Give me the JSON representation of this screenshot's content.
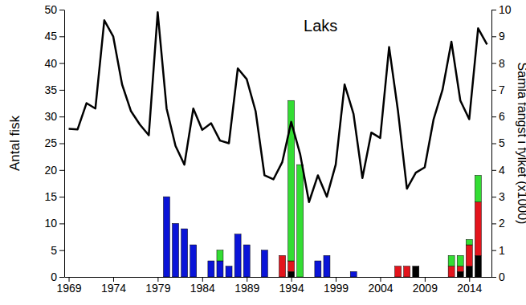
{
  "chart_data": {
    "type": "bar",
    "title": "Laks",
    "y_label": "Antal fisk",
    "y2_label": "Samla fangst i fylket (x1000)",
    "stacked": true,
    "x": [
      1969,
      1970,
      1971,
      1972,
      1973,
      1974,
      1975,
      1976,
      1977,
      1978,
      1979,
      1980,
      1981,
      1982,
      1983,
      1984,
      1985,
      1986,
      1987,
      1988,
      1989,
      1990,
      1991,
      1992,
      1993,
      1994,
      1995,
      1996,
      1997,
      1998,
      1999,
      2000,
      2001,
      2002,
      2003,
      2004,
      2005,
      2006,
      2007,
      2008,
      2009,
      2010,
      2011,
      2012,
      2013,
      2014,
      2015,
      2016
    ],
    "xlim": [
      1968.5,
      2016.5
    ],
    "xticks": [
      1969,
      1974,
      1979,
      1984,
      1989,
      1994,
      1999,
      2004,
      2009,
      2014
    ],
    "ylim": [
      0,
      50
    ],
    "yticks": [
      0,
      5,
      10,
      15,
      20,
      25,
      30,
      35,
      40,
      45,
      50
    ],
    "y2lim": [
      0,
      10
    ],
    "y2ticks": [
      0,
      1,
      2,
      3,
      4,
      5,
      6,
      7,
      8,
      9,
      10
    ],
    "series": [
      {
        "type": "bar",
        "color": "#000000",
        "values": [
          null,
          null,
          null,
          null,
          null,
          null,
          null,
          null,
          null,
          null,
          null,
          null,
          null,
          null,
          null,
          null,
          null,
          null,
          null,
          null,
          null,
          null,
          null,
          null,
          null,
          1,
          null,
          null,
          null,
          null,
          null,
          null,
          null,
          null,
          null,
          null,
          null,
          null,
          null,
          2,
          null,
          null,
          null,
          null,
          1,
          2,
          4,
          null
        ]
      },
      {
        "type": "bar",
        "color": "#e3141c",
        "values": [
          null,
          null,
          null,
          null,
          null,
          null,
          null,
          null,
          null,
          null,
          null,
          null,
          null,
          null,
          null,
          null,
          null,
          null,
          null,
          null,
          null,
          null,
          null,
          null,
          4,
          2,
          null,
          null,
          null,
          null,
          null,
          null,
          null,
          null,
          null,
          null,
          null,
          2,
          2,
          null,
          null,
          null,
          null,
          2,
          1,
          4,
          10,
          null
        ]
      },
      {
        "type": "bar",
        "color": "#0a14d8",
        "values": [
          null,
          null,
          null,
          null,
          null,
          null,
          null,
          null,
          null,
          null,
          null,
          15,
          10,
          9,
          6,
          null,
          3,
          3,
          2,
          8,
          6,
          null,
          5,
          null,
          null,
          null,
          null,
          null,
          3,
          4,
          null,
          null,
          1,
          null,
          null,
          null,
          null,
          null,
          null,
          null,
          null,
          null,
          null,
          null,
          null,
          null,
          null,
          null
        ]
      },
      {
        "type": "bar",
        "color": "#33dd33",
        "values": [
          null,
          null,
          null,
          null,
          null,
          null,
          null,
          null,
          null,
          null,
          null,
          null,
          null,
          null,
          null,
          null,
          null,
          2,
          null,
          null,
          null,
          null,
          null,
          null,
          null,
          30,
          21,
          null,
          null,
          null,
          null,
          null,
          null,
          null,
          null,
          null,
          null,
          null,
          null,
          null,
          null,
          null,
          null,
          2,
          2,
          1,
          5,
          null
        ]
      },
      {
        "type": "line",
        "axis": "y2",
        "color": "#000000",
        "values": [
          5.54,
          5.52,
          6.5,
          6.3,
          9.6,
          9.0,
          7.2,
          6.2,
          5.7,
          5.3,
          9.9,
          6.3,
          4.9,
          4.2,
          6.3,
          5.5,
          5.75,
          5.1,
          5.0,
          7.8,
          7.4,
          6.2,
          3.8,
          3.65,
          4.3,
          5.8,
          4.6,
          2.8,
          3.8,
          3.0,
          4.2,
          7.2,
          6.1,
          3.7,
          5.4,
          5.2,
          8.6,
          6.2,
          3.3,
          3.9,
          4.1,
          5.9,
          7.0,
          8.8,
          6.6,
          5.9,
          9.3,
          8.7
        ]
      }
    ]
  }
}
